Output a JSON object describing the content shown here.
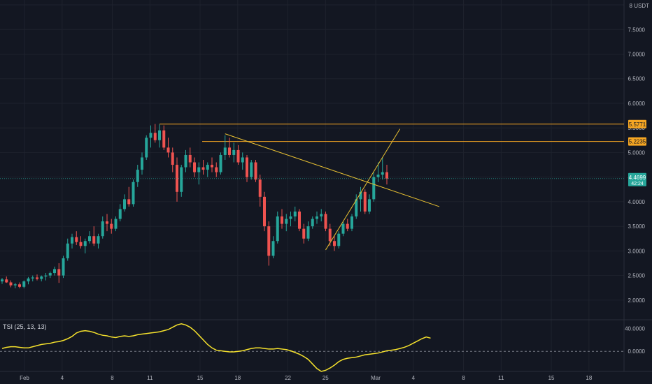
{
  "chart_data": {
    "type": "candlestick",
    "unit": "USDT",
    "price_axis": {
      "ticks": [
        "8",
        "7.5000",
        "7.0000",
        "6.5000",
        "6.0000",
        "5.5000",
        "5.0000",
        "4.5000",
        "4.0000",
        "3.5000",
        "3.0000",
        "2.5000",
        "2.0000"
      ],
      "tick_values": [
        8,
        7.5,
        7,
        6.5,
        6,
        5.5,
        5,
        4.5,
        4,
        3.5,
        3,
        2.5,
        2
      ],
      "ylim": [
        1.6,
        8.1
      ]
    },
    "time_axis": {
      "labels": [
        "Feb",
        "4",
        "8",
        "11",
        "15",
        "18",
        "22",
        "25",
        "Mar",
        "4",
        "8",
        "11",
        "15",
        "18"
      ],
      "label_days": [
        1,
        4,
        8,
        11,
        15,
        18,
        22,
        25,
        29,
        32,
        36,
        39,
        43,
        46
      ]
    },
    "candles": [
      [
        2.38,
        2.45,
        2.33,
        2.42
      ],
      [
        2.42,
        2.48,
        2.35,
        2.36
      ],
      [
        2.36,
        2.4,
        2.26,
        2.3
      ],
      [
        2.3,
        2.35,
        2.24,
        2.32
      ],
      [
        2.32,
        2.36,
        2.24,
        2.27
      ],
      [
        2.27,
        2.4,
        2.24,
        2.38
      ],
      [
        2.38,
        2.47,
        2.32,
        2.44
      ],
      [
        2.44,
        2.5,
        2.38,
        2.46
      ],
      [
        2.46,
        2.52,
        2.4,
        2.43
      ],
      [
        2.43,
        2.5,
        2.38,
        2.48
      ],
      [
        2.48,
        2.55,
        2.4,
        2.5
      ],
      [
        2.5,
        2.58,
        2.45,
        2.55
      ],
      [
        2.55,
        2.68,
        2.5,
        2.63
      ],
      [
        2.63,
        2.75,
        2.35,
        2.5
      ],
      [
        2.5,
        2.9,
        2.45,
        2.85
      ],
      [
        2.85,
        3.25,
        2.8,
        3.15
      ],
      [
        3.15,
        3.35,
        3.05,
        3.28
      ],
      [
        3.28,
        3.4,
        3.12,
        3.18
      ],
      [
        3.18,
        3.3,
        3.05,
        3.1
      ],
      [
        3.1,
        3.25,
        2.95,
        3.2
      ],
      [
        3.2,
        3.4,
        3.15,
        3.3
      ],
      [
        3.3,
        3.5,
        3.1,
        3.15
      ],
      [
        3.15,
        3.35,
        3.05,
        3.3
      ],
      [
        3.3,
        3.7,
        3.25,
        3.6
      ],
      [
        3.6,
        3.75,
        3.4,
        3.55
      ],
      [
        3.55,
        3.65,
        3.35,
        3.45
      ],
      [
        3.45,
        3.7,
        3.4,
        3.65
      ],
      [
        3.65,
        3.95,
        3.6,
        3.85
      ],
      [
        3.85,
        4.15,
        3.8,
        4.05
      ],
      [
        4.05,
        4.3,
        3.9,
        3.95
      ],
      [
        3.95,
        4.45,
        3.9,
        4.4
      ],
      [
        4.4,
        4.75,
        4.3,
        4.65
      ],
      [
        4.65,
        5.0,
        4.55,
        4.9
      ],
      [
        4.9,
        5.35,
        4.85,
        5.3
      ],
      [
        5.3,
        5.55,
        5.1,
        5.4
      ],
      [
        5.4,
        5.58,
        5.2,
        5.25
      ],
      [
        5.25,
        5.57,
        5.1,
        5.45
      ],
      [
        5.45,
        5.55,
        5.05,
        5.1
      ],
      [
        5.1,
        5.3,
        4.9,
        5.0
      ],
      [
        5.0,
        5.1,
        4.6,
        4.75
      ],
      [
        4.75,
        4.9,
        4.0,
        4.2
      ],
      [
        4.2,
        4.75,
        4.1,
        4.7
      ],
      [
        4.7,
        5.05,
        4.6,
        4.95
      ],
      [
        4.95,
        5.1,
        4.7,
        4.8
      ],
      [
        4.8,
        4.9,
        4.5,
        4.6
      ],
      [
        4.6,
        4.8,
        4.35,
        4.7
      ],
      [
        4.7,
        4.85,
        4.55,
        4.65
      ],
      [
        4.65,
        4.8,
        4.5,
        4.75
      ],
      [
        4.75,
        4.9,
        4.6,
        4.7
      ],
      [
        4.7,
        4.8,
        4.5,
        4.6
      ],
      [
        4.6,
        5.0,
        4.55,
        4.95
      ],
      [
        4.95,
        5.35,
        4.85,
        5.1
      ],
      [
        5.1,
        5.3,
        4.9,
        4.95
      ],
      [
        4.95,
        5.2,
        4.8,
        5.05
      ],
      [
        5.05,
        5.15,
        4.75,
        4.8
      ],
      [
        4.8,
        5.0,
        4.65,
        4.9
      ],
      [
        4.9,
        4.95,
        4.4,
        4.5
      ],
      [
        4.5,
        4.85,
        4.45,
        4.8
      ],
      [
        4.8,
        4.85,
        4.4,
        4.45
      ],
      [
        4.45,
        4.55,
        3.9,
        4.1
      ],
      [
        4.1,
        4.2,
        3.4,
        3.5
      ],
      [
        3.5,
        3.6,
        2.7,
        2.9
      ],
      [
        2.9,
        3.3,
        2.85,
        3.2
      ],
      [
        3.2,
        3.8,
        3.15,
        3.7
      ],
      [
        3.7,
        3.85,
        3.45,
        3.55
      ],
      [
        3.55,
        3.75,
        3.4,
        3.65
      ],
      [
        3.65,
        3.8,
        3.5,
        3.7
      ],
      [
        3.7,
        3.9,
        3.6,
        3.8
      ],
      [
        3.8,
        3.85,
        3.4,
        3.45
      ],
      [
        3.45,
        3.55,
        3.15,
        3.25
      ],
      [
        3.25,
        3.6,
        3.2,
        3.5
      ],
      [
        3.5,
        3.7,
        3.45,
        3.65
      ],
      [
        3.65,
        3.8,
        3.55,
        3.7
      ],
      [
        3.7,
        3.85,
        3.6,
        3.75
      ],
      [
        3.75,
        3.8,
        3.4,
        3.45
      ],
      [
        3.45,
        3.55,
        3.1,
        3.2
      ],
      [
        3.2,
        3.3,
        3.0,
        3.1
      ],
      [
        3.1,
        3.4,
        3.05,
        3.35
      ],
      [
        3.35,
        3.6,
        3.3,
        3.55
      ],
      [
        3.55,
        3.65,
        3.4,
        3.45
      ],
      [
        3.45,
        3.75,
        3.4,
        3.7
      ],
      [
        3.7,
        4.15,
        3.65,
        4.05
      ],
      [
        4.05,
        4.3,
        3.8,
        4.2
      ],
      [
        4.2,
        4.25,
        3.75,
        3.8
      ],
      [
        3.8,
        4.15,
        3.75,
        4.05
      ],
      [
        4.05,
        4.6,
        4.0,
        4.5
      ],
      [
        4.5,
        4.8,
        4.4,
        4.55
      ],
      [
        4.55,
        4.9,
        4.45,
        4.6
      ],
      [
        4.6,
        4.75,
        4.35,
        4.47
      ]
    ],
    "last_price": {
      "value": 4.4699,
      "label": "4.4699",
      "countdown": "42:24"
    },
    "horizontal_lines": [
      {
        "value": 5.5771,
        "label": "5.5771"
      },
      {
        "value": 5.2235,
        "label": "5.2235"
      }
    ],
    "trendlines": [
      {
        "from": {
          "index": 51,
          "value": 5.38
        },
        "to": {
          "index": 100,
          "value": 3.9
        }
      },
      {
        "from": {
          "index": 74,
          "value": 3.02
        },
        "to": {
          "index": 91,
          "value": 5.48
        }
      }
    ],
    "tsi": {
      "title": "TSI (25, 13, 13)",
      "ticks": [
        "40.0000",
        "0.0000"
      ],
      "tick_values": [
        40,
        0
      ],
      "ylim": [
        -35,
        55
      ],
      "zero_value": 0,
      "values": [
        5,
        7,
        8,
        8,
        7,
        6,
        6,
        8,
        10,
        12,
        13,
        14,
        16,
        17,
        19,
        22,
        26,
        32,
        35,
        36,
        35,
        33,
        30,
        28,
        27,
        25,
        24,
        26,
        27,
        26,
        27,
        29,
        30,
        31,
        32,
        33,
        34,
        36,
        38,
        42,
        46,
        48,
        46,
        42,
        36,
        28,
        20,
        12,
        6,
        2,
        1,
        0,
        -1,
        -1,
        0,
        1,
        3,
        5,
        6,
        6,
        5,
        4,
        4,
        5,
        4,
        3,
        1,
        -2,
        -5,
        -9,
        -14,
        -22,
        -30,
        -35,
        -33,
        -29,
        -24,
        -18,
        -14,
        -12,
        -11,
        -10,
        -8,
        -6,
        -5,
        -4,
        -3,
        -1,
        1,
        2,
        3,
        5,
        7,
        10,
        14,
        18,
        22,
        25,
        23
      ]
    }
  },
  "colors": {
    "background": "#131722",
    "grid": "#1e222d",
    "bull": "#26a69a",
    "bear": "#ef5350",
    "drawing": "#f5a623",
    "trend": "#e8c032",
    "tsi_line": "#f5e12c",
    "axis_text": "#b2b5be"
  }
}
